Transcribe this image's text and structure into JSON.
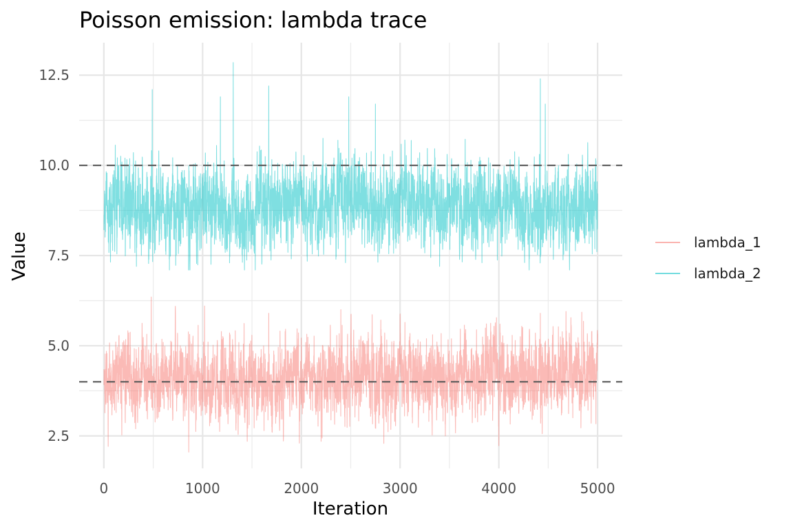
{
  "chart_data": {
    "type": "line",
    "title": "Poisson emission: lambda trace",
    "xlabel": "Iteration",
    "ylabel": "Value",
    "xlim": [
      -250,
      5250
    ],
    "ylim": [
      1.6,
      13.4
    ],
    "x_ticks": [
      0,
      1000,
      2000,
      3000,
      4000,
      5000
    ],
    "x_tick_labels": [
      "0",
      "1000",
      "2000",
      "3000",
      "4000",
      "5000"
    ],
    "y_ticks": [
      2.5,
      5.0,
      7.5,
      10.0,
      12.5
    ],
    "y_tick_labels": [
      "2.5",
      "5.0",
      "7.5",
      "10.0",
      "12.5"
    ],
    "grid": true,
    "legend_position": "right",
    "iterations": [
      1,
      5000
    ],
    "reference_lines": [
      {
        "y": 10,
        "style": "dashed",
        "color": "#595959"
      },
      {
        "y": 4,
        "style": "dashed",
        "color": "#595959"
      }
    ],
    "series": [
      {
        "name": "lambda_1",
        "color": "#F8766D",
        "mean": 4.1,
        "sd": 0.55,
        "trace_summary": {
          "min": 2.05,
          "max": 6.35
        },
        "spikes": [
          {
            "x": 480,
            "y": 6.35
          },
          {
            "x": 1020,
            "y": 6.1
          },
          {
            "x": 860,
            "y": 2.05
          },
          {
            "x": 1980,
            "y": 2.3
          },
          {
            "x": 2200,
            "y": 2.35
          },
          {
            "x": 1670,
            "y": 5.9
          },
          {
            "x": 2400,
            "y": 6.0
          },
          {
            "x": 4420,
            "y": 5.9
          },
          {
            "x": 4680,
            "y": 5.95
          }
        ]
      },
      {
        "name": "lambda_2",
        "color": "#00BFC4",
        "mean": 8.9,
        "sd": 0.6,
        "trace_summary": {
          "min": 7.1,
          "max": 12.85
        },
        "spikes": [
          {
            "x": 1310,
            "y": 12.85
          },
          {
            "x": 490,
            "y": 12.1
          },
          {
            "x": 1670,
            "y": 12.2
          },
          {
            "x": 4420,
            "y": 12.4
          },
          {
            "x": 1180,
            "y": 11.9
          },
          {
            "x": 2480,
            "y": 11.9
          },
          {
            "x": 2750,
            "y": 11.7
          },
          {
            "x": 4470,
            "y": 11.7
          },
          {
            "x": 860,
            "y": 7.1
          },
          {
            "x": 3400,
            "y": 7.2
          },
          {
            "x": 330,
            "y": 7.2
          }
        ]
      }
    ]
  }
}
